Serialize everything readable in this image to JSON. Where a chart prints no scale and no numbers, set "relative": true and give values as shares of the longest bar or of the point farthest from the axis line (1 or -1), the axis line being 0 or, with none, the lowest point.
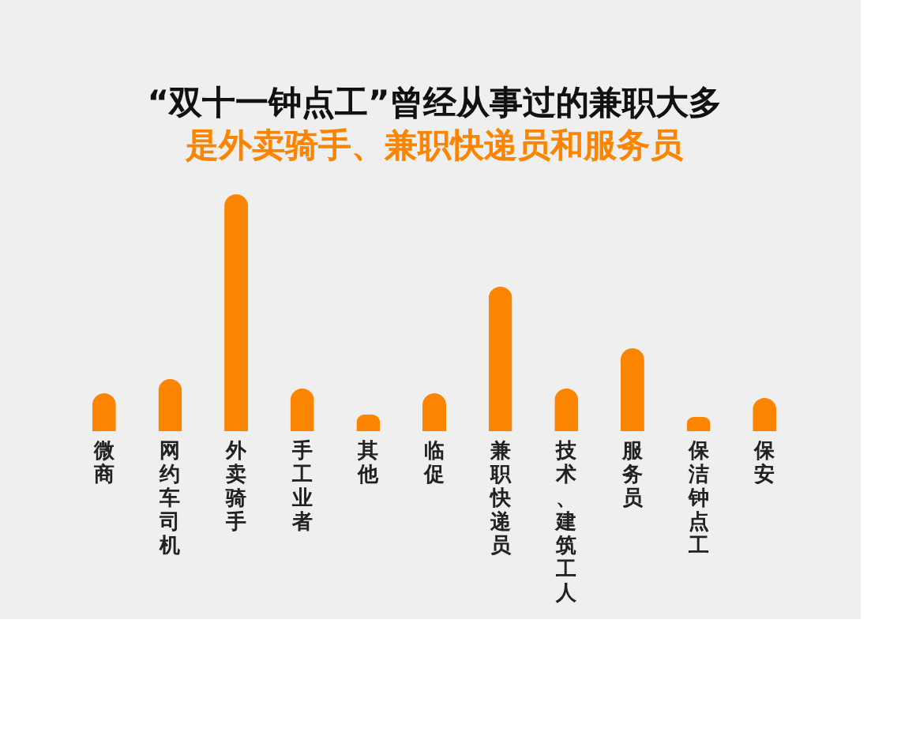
{
  "chart_data": {
    "type": "bar",
    "relative": true,
    "title": "“双十一钟点工”曾经从事过的兼职大多",
    "subtitle": "是外卖骑手、兼职快递员和服务员",
    "categories": [
      "微商",
      "网约车司机",
      "外卖骑手",
      "手工业者",
      "其他",
      "临促",
      "兼职快递员",
      "技术、建筑工人",
      "服务员",
      "保洁钟点工",
      "保安"
    ],
    "values": [
      0.16,
      0.22,
      1,
      0.18,
      0.07,
      0.16,
      0.61,
      0.18,
      0.35,
      0.06,
      0.14
    ],
    "color": "#fb8500"
  }
}
